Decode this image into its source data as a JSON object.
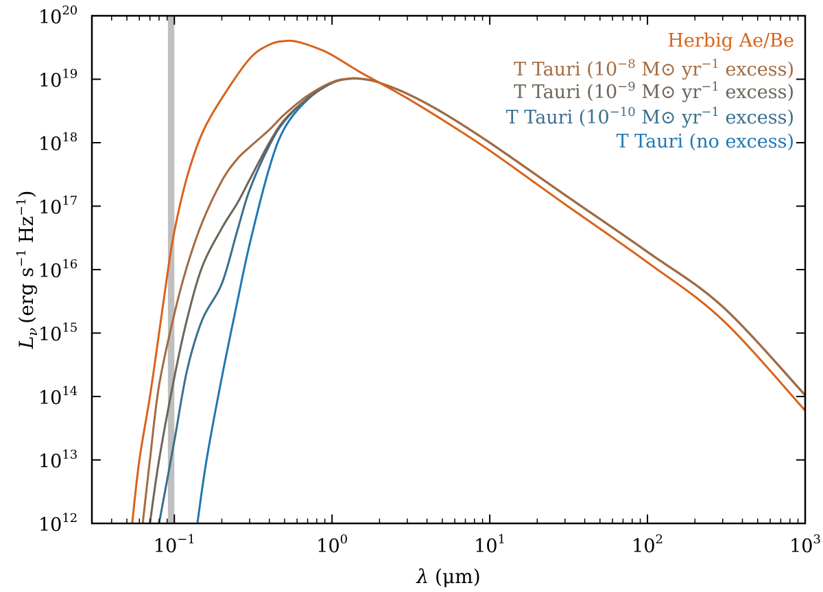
{
  "chart_data": {
    "type": "line",
    "title": "",
    "xlabel": "λ (μm)",
    "xlabel_parts": {
      "symbol": "λ",
      "unit": "(μm)"
    },
    "ylabel": "Lν (erg s−1 Hz−1)",
    "ylabel_parts": {
      "symbol": "L",
      "sub": "ν",
      "open": "(erg s",
      "exp1": "−1",
      "mid": " Hz",
      "exp2": "−1",
      "close": ")"
    },
    "x_scale": "log",
    "y_scale": "log",
    "xlim": [
      0.03,
      1000
    ],
    "ylim": [
      1000000000000.0,
      1e+20
    ],
    "x_ticks": [
      {
        "base": "10",
        "exp": "−1",
        "value": 0.1
      },
      {
        "base": "10",
        "exp": "0",
        "value": 1
      },
      {
        "base": "10",
        "exp": "1",
        "value": 10
      },
      {
        "base": "10",
        "exp": "2",
        "value": 100
      },
      {
        "base": "10",
        "exp": "3",
        "value": 1000
      }
    ],
    "y_ticks": [
      {
        "base": "10",
        "exp": "12",
        "value": 1000000000000.0
      },
      {
        "base": "10",
        "exp": "13",
        "value": 10000000000000.0
      },
      {
        "base": "10",
        "exp": "14",
        "value": 100000000000000.0
      },
      {
        "base": "10",
        "exp": "15",
        "value": 1000000000000000.0
      },
      {
        "base": "10",
        "exp": "16",
        "value": 1e+16
      },
      {
        "base": "10",
        "exp": "17",
        "value": 1e+17
      },
      {
        "base": "10",
        "exp": "18",
        "value": 1e+18
      },
      {
        "base": "10",
        "exp": "19",
        "value": 1e+19
      },
      {
        "base": "10",
        "exp": "20",
        "value": 1e+20
      }
    ],
    "grid": false,
    "legend_position": "top-right",
    "shaded_band": {
      "x_range": [
        0.091,
        0.1
      ],
      "color": "#bfbfbf"
    },
    "series": [
      {
        "name": "Herbig Ae/Be",
        "legend": {
          "pre": "Herbig Ae/Be",
          "exp": "",
          "post": ""
        },
        "color": "#d9621b",
        "points": [
          [
            0.054,
            1000000000000.0
          ],
          [
            0.06,
            10000000000000.0
          ],
          [
            0.07,
            100000000000000.0
          ],
          [
            0.08,
            1000000000000000.0
          ],
          [
            0.09,
            8000000000000000.0
          ],
          [
            0.1,
            4e+16
          ],
          [
            0.12,
            2.8e+17
          ],
          [
            0.15,
            1.4e+18
          ],
          [
            0.2,
            5e+18
          ],
          [
            0.3,
            2.1e+19
          ],
          [
            0.4,
            3.5e+19
          ],
          [
            0.5,
            4e+19
          ],
          [
            0.6,
            3.9e+19
          ],
          [
            0.8,
            3.1e+19
          ],
          [
            1.0,
            2.4e+19
          ],
          [
            1.5,
            1.3e+19
          ],
          [
            2.0,
            8.8e+18
          ],
          [
            3.0,
            5e+18
          ],
          [
            5.0,
            2.3e+18
          ],
          [
            10,
            7.5e+17
          ],
          [
            30,
            1.07e+17
          ],
          [
            100,
            1.3e+16
          ],
          [
            300,
            1600000000000000.0
          ],
          [
            1000,
            60000000000000.0
          ]
        ]
      },
      {
        "name": "T Tauri (10−8 M⊙ yr−1 excess)",
        "legend": {
          "pre": "T Tauri (10",
          "exp": "−8",
          "post": " M⊙ yr",
          "exp2": "−1",
          "tail": " excess)"
        },
        "color": "#a56a3f",
        "points": [
          [
            0.063,
            1000000000000.0
          ],
          [
            0.07,
            10000000000000.0
          ],
          [
            0.08,
            150000000000000.0
          ],
          [
            0.1,
            2000000000000000.0
          ],
          [
            0.12,
            1.1e+16
          ],
          [
            0.15,
            5.5e+16
          ],
          [
            0.2,
            2.5e+17
          ],
          [
            0.25,
            5.5e+17
          ],
          [
            0.3,
            8.5e+17
          ],
          [
            0.4,
            1.6e+18
          ],
          [
            0.5,
            2.8e+18
          ],
          [
            0.7,
            5.5e+18
          ],
          [
            1.0,
            9e+18
          ],
          [
            1.3,
            1.03e+19
          ],
          [
            1.6,
            1e+19
          ],
          [
            2.0,
            8.8e+18
          ],
          [
            3.0,
            5.9e+18
          ],
          [
            5.0,
            3e+18
          ],
          [
            10,
            1e+18
          ],
          [
            30,
            1.5e+17
          ],
          [
            100,
            1.9e+16
          ],
          [
            300,
            2600000000000000.0
          ],
          [
            1000,
            105000000000000.0
          ]
        ]
      },
      {
        "name": "T Tauri (10−9 M⊙ yr−1 excess)",
        "legend": {
          "pre": "T Tauri (10",
          "exp": "−9",
          "post": " M⊙ yr",
          "exp2": "−1",
          "tail": " excess)"
        },
        "color": "#6e6459",
        "points": [
          [
            0.07,
            1000000000000.0
          ],
          [
            0.08,
            10000000000000.0
          ],
          [
            0.1,
            200000000000000.0
          ],
          [
            0.12,
            1600000000000000.0
          ],
          [
            0.15,
            1.1e+16
          ],
          [
            0.2,
            4.5e+16
          ],
          [
            0.25,
            1.1e+17
          ],
          [
            0.3,
            2.6e+17
          ],
          [
            0.4,
            1e+18
          ],
          [
            0.5,
            2.3e+18
          ],
          [
            0.7,
            5e+18
          ],
          [
            1.0,
            8.8e+18
          ],
          [
            1.3,
            1.02e+19
          ],
          [
            1.6,
            1e+19
          ],
          [
            2.0,
            8.8e+18
          ],
          [
            3.0,
            5.9e+18
          ],
          [
            5.0,
            3e+18
          ],
          [
            10,
            1e+18
          ],
          [
            30,
            1.5e+17
          ],
          [
            100,
            1.9e+16
          ],
          [
            300,
            2600000000000000.0
          ],
          [
            1000,
            105000000000000.0
          ]
        ]
      },
      {
        "name": "T Tauri (10−10 M⊙ yr−1 excess)",
        "legend": {
          "pre": "T Tauri (10",
          "exp": "−10",
          "post": " M⊙ yr",
          "exp2": "−1",
          "tail": " excess)"
        },
        "color": "#3a6f8e",
        "points": [
          [
            0.08,
            1000000000000.0
          ],
          [
            0.1,
            20000000000000.0
          ],
          [
            0.12,
            250000000000000.0
          ],
          [
            0.15,
            1600000000000000.0
          ],
          [
            0.2,
            6000000000000000.0
          ],
          [
            0.25,
            4e+16
          ],
          [
            0.3,
            1.8e+17
          ],
          [
            0.4,
            9e+17
          ],
          [
            0.5,
            2.2e+18
          ],
          [
            0.7,
            5e+18
          ],
          [
            1.0,
            8.8e+18
          ],
          [
            1.3,
            1.02e+19
          ],
          [
            1.6,
            1e+19
          ],
          [
            2.0,
            8.8e+18
          ],
          [
            3.0,
            5.9e+18
          ],
          [
            5.0,
            3e+18
          ],
          [
            10,
            1e+18
          ],
          [
            30,
            1.5e+17
          ],
          [
            100,
            1.9e+16
          ],
          [
            300,
            2600000000000000.0
          ],
          [
            1000,
            105000000000000.0
          ]
        ]
      },
      {
        "name": "T Tauri (no excess)",
        "legend": {
          "pre": "T Tauri (no excess)",
          "exp": "",
          "post": ""
        },
        "color": "#1f77b4",
        "points": [
          [
            0.14,
            1000000000000.0
          ],
          [
            0.16,
            10000000000000.0
          ],
          [
            0.2,
            200000000000000.0
          ],
          [
            0.25,
            3000000000000000.0
          ],
          [
            0.3,
            2.5e+16
          ],
          [
            0.4,
            4e+17
          ],
          [
            0.5,
            1.7e+18
          ],
          [
            0.7,
            4.8e+18
          ],
          [
            1.0,
            8.7e+18
          ],
          [
            1.3,
            1.02e+19
          ],
          [
            1.6,
            1e+19
          ],
          [
            2.0,
            8.8e+18
          ],
          [
            3.0,
            5.9e+18
          ],
          [
            5.0,
            3e+18
          ],
          [
            10,
            1e+18
          ],
          [
            30,
            1.5e+17
          ],
          [
            100,
            1.9e+16
          ],
          [
            300,
            2600000000000000.0
          ],
          [
            1000,
            105000000000000.0
          ]
        ]
      }
    ]
  }
}
